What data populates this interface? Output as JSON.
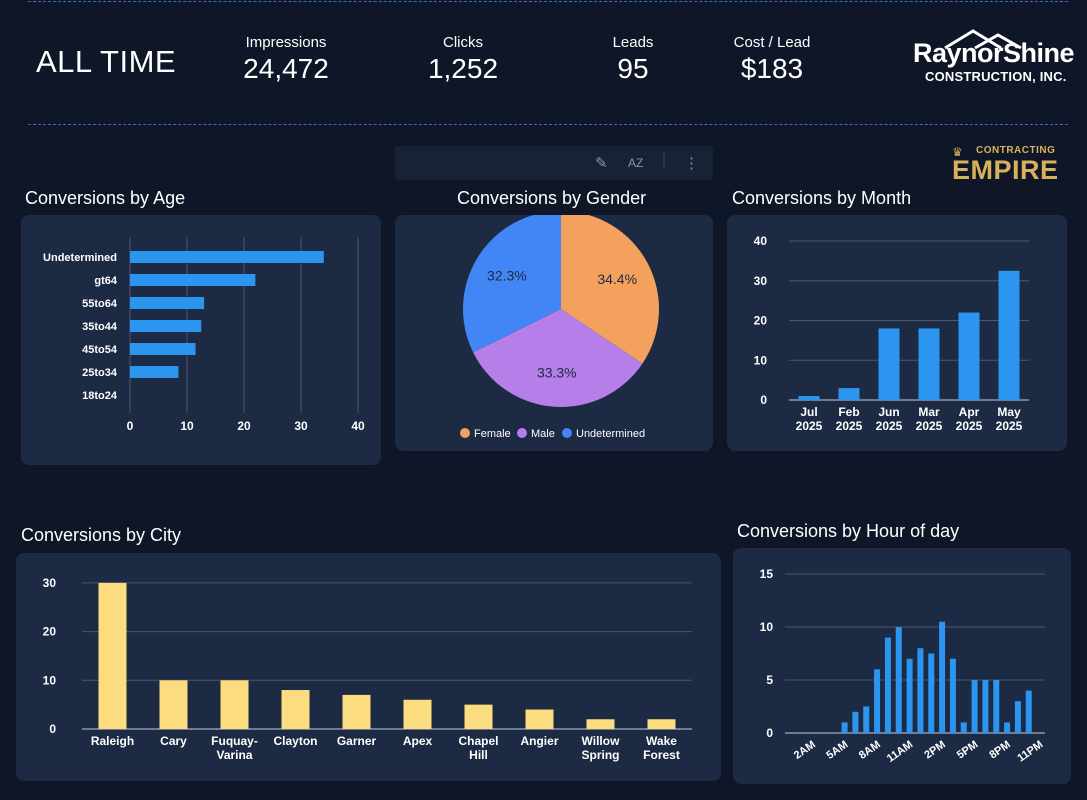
{
  "header": {
    "title": "ALL TIME",
    "kpis": [
      {
        "label": "Impressions",
        "value": "24,472"
      },
      {
        "label": "Clicks",
        "value": "1,252"
      },
      {
        "label": "Leads",
        "value": "95"
      },
      {
        "label": "Cost / Lead",
        "value": "$183"
      }
    ],
    "logo": {
      "name": "RaynorShine",
      "sub": "CONSTRUCTION, INC."
    },
    "partner_logo": {
      "small": "CONTRACTING",
      "big": "EMPIRE"
    }
  },
  "toolbar": {
    "icons": [
      "pencil-icon",
      "sort-az-icon",
      "more-vertical-icon"
    ],
    "sort_text": "AZ"
  },
  "colors": {
    "blue": "#2b95f0",
    "yellow": "#fbdc7e",
    "orange": "#f4a15d",
    "purple": "#b57ee9",
    "pie_blue": "#4285f4",
    "card": "#1c2a44",
    "background": "#0e1627"
  },
  "sections": {
    "age": "Conversions by Age",
    "gender": "Conversions by Gender",
    "month": "Conversions by Month",
    "city": "Conversions by City",
    "hour": "Conversions by Hour of day"
  },
  "chart_data": [
    {
      "id": "age",
      "type": "bar",
      "orientation": "horizontal",
      "title": "Conversions by Age",
      "categories": [
        "Undetermined",
        "gt64",
        "55to64",
        "35to44",
        "45to54",
        "25to34",
        "18to24"
      ],
      "values": [
        34,
        22,
        13,
        12.5,
        11.5,
        8.5,
        0
      ],
      "xticks": [
        0,
        10,
        20,
        30,
        40
      ],
      "xlim": [
        0,
        40
      ],
      "grid": true
    },
    {
      "id": "gender",
      "type": "pie",
      "title": "Conversions by Gender",
      "slices": [
        {
          "label": "Female",
          "value": 34.4,
          "text": "34.4%"
        },
        {
          "label": "Male",
          "value": 33.3,
          "text": "33.3%"
        },
        {
          "label": "Undetermined",
          "value": 32.3,
          "text": "32.3%"
        }
      ],
      "legend": "bottom"
    },
    {
      "id": "month",
      "type": "bar",
      "title": "Conversions by Month",
      "categories": [
        [
          "Jul",
          "2025"
        ],
        [
          "Feb",
          "2025"
        ],
        [
          "Jun",
          "2025"
        ],
        [
          "Mar",
          "2025"
        ],
        [
          "Apr",
          "2025"
        ],
        [
          "May",
          "2025"
        ]
      ],
      "values": [
        1,
        3,
        18,
        18,
        22,
        32.5
      ],
      "yticks": [
        0,
        10,
        20,
        30,
        40
      ],
      "ylim": [
        0,
        40
      ],
      "grid": true
    },
    {
      "id": "city",
      "type": "bar",
      "title": "Conversions by City",
      "categories": [
        [
          "Raleigh"
        ],
        [
          "Cary"
        ],
        [
          "Fuquay-",
          "Varina"
        ],
        [
          "Clayton"
        ],
        [
          "Garner"
        ],
        [
          "Apex"
        ],
        [
          "Chapel",
          "Hill"
        ],
        [
          "Angier"
        ],
        [
          "Willow",
          "Spring"
        ],
        [
          "Wake",
          "Forest"
        ]
      ],
      "values": [
        30,
        10,
        10,
        8,
        7,
        6,
        5,
        4,
        2,
        2
      ],
      "yticks": [
        0,
        10,
        20,
        30
      ],
      "ylim": [
        0,
        31
      ],
      "grid": true
    },
    {
      "id": "hour",
      "type": "bar",
      "title": "Conversions by Hour of day",
      "categories": [
        "12AM",
        "1AM",
        "2AM",
        "3AM",
        "4AM",
        "5AM",
        "6AM",
        "7AM",
        "8AM",
        "9AM",
        "10AM",
        "11AM",
        "12PM",
        "1PM",
        "2PM",
        "3PM",
        "4PM",
        "5PM",
        "6PM",
        "7PM",
        "8PM",
        "9PM",
        "10PM",
        "11PM"
      ],
      "values": [
        0,
        0,
        0,
        0,
        0,
        1,
        2,
        2.5,
        6,
        9,
        10,
        7,
        8,
        7.5,
        10.5,
        7,
        1,
        5,
        5,
        5,
        1,
        3,
        4,
        0
      ],
      "xtick_labels": [
        "2AM",
        "5AM",
        "8AM",
        "11AM",
        "2PM",
        "5PM",
        "8PM",
        "11PM"
      ],
      "yticks": [
        0,
        5,
        10,
        15
      ],
      "ylim": [
        0,
        15
      ],
      "grid": true
    }
  ]
}
